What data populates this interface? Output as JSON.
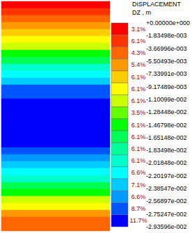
{
  "chart_data": {
    "type": "heatmap",
    "title": "DISPLACEMENT",
    "subtitle": "DZ , m",
    "cells": [
      0,
      -0.001,
      -0.0025,
      -0.004,
      -0.006,
      -0.0085,
      -0.011,
      -0.014,
      -0.0165,
      -0.019,
      -0.0215,
      -0.0238,
      -0.0258,
      -0.0273,
      -0.0283,
      -0.029,
      -0.0293,
      -0.0293,
      -0.0291,
      -0.0287,
      -0.028,
      -0.027,
      -0.0256,
      -0.0238,
      -0.0215,
      -0.019,
      -0.0162,
      -0.0133,
      -0.0105,
      -0.0078,
      -0.0055,
      -0.0035,
      -0.002
    ],
    "colorbar": {
      "range": [
        -0.0293596,
        0
      ],
      "ticks": [
        {
          "value": 0,
          "label": "+0.00000e+000"
        },
        {
          "value": -0.00183498,
          "label": "-1.83498e-003"
        },
        {
          "value": -0.00366996,
          "label": "-3.66996e-003"
        },
        {
          "value": -0.00550493,
          "label": "-5.50493e-003"
        },
        {
          "value": -0.00733991,
          "label": "-7.33991e-003"
        },
        {
          "value": -0.00917489,
          "label": "-9.17489e-003"
        },
        {
          "value": -0.0110099,
          "label": "-1.10099e-002"
        },
        {
          "value": -0.0128448,
          "label": "-1.28448e-002"
        },
        {
          "value": -0.0146798,
          "label": "-1.46798e-002"
        },
        {
          "value": -0.0165148,
          "label": "-1.65148e-002"
        },
        {
          "value": -0.0183498,
          "label": "-1.83498e-002"
        },
        {
          "value": -0.0201848,
          "label": "-2.01848e-002"
        },
        {
          "value": -0.0220197,
          "label": "-2.20197e-002"
        },
        {
          "value": -0.0238547,
          "label": "-2.38547e-002"
        },
        {
          "value": -0.0256897,
          "label": "-2.56897e-002"
        },
        {
          "value": -0.0275247,
          "label": "-2.75247e-002"
        },
        {
          "value": -0.0293596,
          "label": "-2.93596e-002"
        }
      ],
      "colors": [
        "#ff0000",
        "#ff3300",
        "#ff6600",
        "#ff9900",
        "#ffcc00",
        "#ffff00",
        "#ccff00",
        "#66ff00",
        "#00ff00",
        "#00ff55",
        "#00ff99",
        "#00ffcc",
        "#00ffff",
        "#00ccff",
        "#0099ff",
        "#0055ff",
        "#0000ff"
      ],
      "values": [
        3.1,
        6.1,
        4.3,
        5.4,
        6.1,
        6.1,
        6.1,
        3.5,
        6.1,
        6.1,
        6.1,
        6.1,
        6.6,
        7.1,
        6.6,
        8.7,
        11.7
      ],
      "value_labels": [
        "3.1%",
        "6.1%",
        "4.3%",
        "5.4%",
        "6.1%",
        "6.1%",
        "6.1%",
        "3.5%",
        "6.1%",
        "6.1%",
        "6.1%",
        "6.1%",
        "6.6%",
        "7.1%",
        "6.6%",
        "8.7%",
        "11.7%"
      ]
    }
  }
}
